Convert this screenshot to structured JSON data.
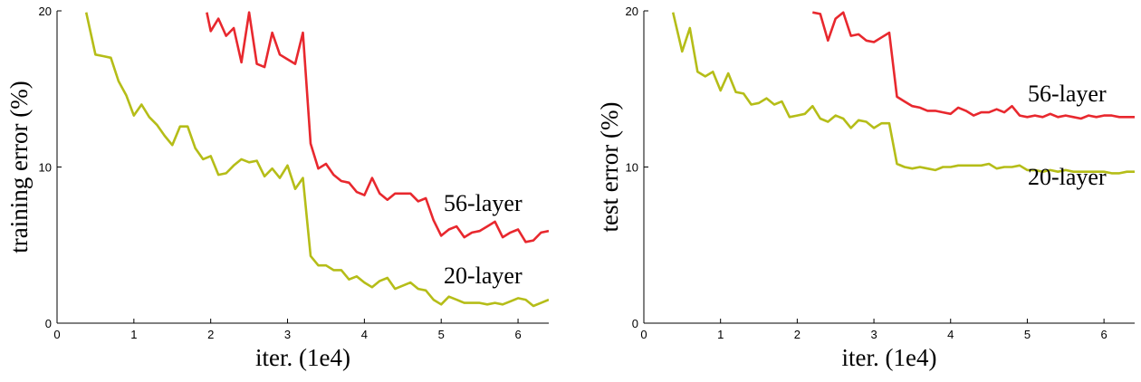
{
  "chart_data": [
    {
      "type": "line",
      "title": "",
      "xlabel": "iter. (1e4)",
      "ylabel": "training error (%)",
      "xlim": [
        0,
        6.4
      ],
      "ylim": [
        0,
        20
      ],
      "xticks": [
        "0",
        "1",
        "2",
        "3",
        "4",
        "5",
        "6"
      ],
      "yticks": [
        "0",
        "10",
        "20"
      ],
      "grid": false,
      "colors": {
        "56-layer": "#e8282e",
        "20-layer": "#b5bd18"
      },
      "series": [
        {
          "name": "56-layer",
          "x": [
            1.95,
            2.0,
            2.1,
            2.2,
            2.3,
            2.4,
            2.5,
            2.6,
            2.7,
            2.8,
            2.9,
            3.0,
            3.1,
            3.2,
            3.3,
            3.4,
            3.5,
            3.6,
            3.7,
            3.8,
            3.9,
            4.0,
            4.1,
            4.2,
            4.3,
            4.4,
            4.5,
            4.6,
            4.7,
            4.8,
            4.9,
            5.0,
            5.1,
            5.2,
            5.3,
            5.4,
            5.5,
            5.6,
            5.7,
            5.8,
            5.9,
            6.0,
            6.1,
            6.2,
            6.3,
            6.4
          ],
          "y": [
            19.9,
            18.7,
            19.5,
            18.4,
            18.9,
            16.7,
            19.9,
            16.6,
            16.4,
            18.6,
            17.2,
            16.9,
            16.6,
            18.6,
            11.5,
            9.9,
            10.2,
            9.5,
            9.1,
            9.0,
            8.4,
            8.2,
            9.3,
            8.3,
            7.9,
            8.3,
            8.3,
            8.3,
            7.8,
            8.0,
            6.6,
            5.6,
            6.0,
            6.2,
            5.5,
            5.8,
            5.9,
            6.2,
            6.5,
            5.5,
            5.8,
            6.0,
            5.2,
            5.3,
            5.8,
            5.9
          ]
        },
        {
          "name": "20-layer",
          "x": [
            0.38,
            0.5,
            0.6,
            0.7,
            0.8,
            0.9,
            1.0,
            1.1,
            1.2,
            1.3,
            1.4,
            1.5,
            1.6,
            1.7,
            1.8,
            1.9,
            2.0,
            2.1,
            2.2,
            2.3,
            2.4,
            2.5,
            2.6,
            2.7,
            2.8,
            2.9,
            3.0,
            3.1,
            3.2,
            3.3,
            3.4,
            3.5,
            3.6,
            3.7,
            3.8,
            3.9,
            4.0,
            4.1,
            4.2,
            4.3,
            4.4,
            4.5,
            4.6,
            4.7,
            4.8,
            4.9,
            5.0,
            5.1,
            5.2,
            5.3,
            5.4,
            5.5,
            5.6,
            5.7,
            5.8,
            5.9,
            6.0,
            6.1,
            6.2,
            6.3,
            6.4
          ],
          "y": [
            19.9,
            17.2,
            17.1,
            17.0,
            15.5,
            14.6,
            13.3,
            14.0,
            13.2,
            12.7,
            12.0,
            11.4,
            12.6,
            12.6,
            11.2,
            10.5,
            10.7,
            9.5,
            9.6,
            10.1,
            10.5,
            10.3,
            10.4,
            9.4,
            9.9,
            9.3,
            10.1,
            8.6,
            9.3,
            4.3,
            3.7,
            3.7,
            3.4,
            3.4,
            2.8,
            3.0,
            2.6,
            2.3,
            2.7,
            2.9,
            2.2,
            2.4,
            2.6,
            2.2,
            2.1,
            1.5,
            1.2,
            1.7,
            1.5,
            1.3,
            1.3,
            1.3,
            1.2,
            1.3,
            1.2,
            1.4,
            1.6,
            1.5,
            1.1,
            1.3,
            1.5
          ]
        }
      ]
    },
    {
      "type": "line",
      "title": "",
      "xlabel": "iter. (1e4)",
      "ylabel": "test error (%)",
      "xlim": [
        0,
        6.4
      ],
      "ylim": [
        0,
        20
      ],
      "xticks": [
        "0",
        "1",
        "2",
        "3",
        "4",
        "5",
        "6"
      ],
      "yticks": [
        "0",
        "10",
        "20"
      ],
      "grid": false,
      "colors": {
        "56-layer": "#e8282e",
        "20-layer": "#b5bd18"
      },
      "series": [
        {
          "name": "56-layer",
          "x": [
            2.2,
            2.3,
            2.4,
            2.5,
            2.6,
            2.7,
            2.8,
            2.9,
            3.0,
            3.1,
            3.2,
            3.3,
            3.4,
            3.5,
            3.6,
            3.7,
            3.8,
            3.9,
            4.0,
            4.1,
            4.2,
            4.3,
            4.4,
            4.5,
            4.6,
            4.7,
            4.8,
            4.9,
            5.0,
            5.1,
            5.2,
            5.3,
            5.4,
            5.5,
            5.6,
            5.7,
            5.8,
            5.9,
            6.0,
            6.1,
            6.2,
            6.3,
            6.4
          ],
          "y": [
            19.9,
            19.8,
            18.1,
            19.5,
            19.9,
            18.4,
            18.5,
            18.1,
            18.0,
            18.3,
            18.6,
            14.5,
            14.2,
            13.9,
            13.8,
            13.6,
            13.6,
            13.5,
            13.4,
            13.8,
            13.6,
            13.3,
            13.5,
            13.5,
            13.7,
            13.5,
            13.9,
            13.3,
            13.2,
            13.3,
            13.2,
            13.4,
            13.2,
            13.3,
            13.2,
            13.1,
            13.3,
            13.2,
            13.3,
            13.3,
            13.2,
            13.2,
            13.2
          ]
        },
        {
          "name": "20-layer",
          "x": [
            0.38,
            0.5,
            0.6,
            0.7,
            0.8,
            0.9,
            1.0,
            1.1,
            1.2,
            1.3,
            1.4,
            1.5,
            1.6,
            1.7,
            1.8,
            1.9,
            2.0,
            2.1,
            2.2,
            2.3,
            2.4,
            2.5,
            2.6,
            2.7,
            2.8,
            2.9,
            3.0,
            3.1,
            3.2,
            3.3,
            3.4,
            3.5,
            3.6,
            3.7,
            3.8,
            3.9,
            4.0,
            4.1,
            4.2,
            4.3,
            4.4,
            4.5,
            4.6,
            4.7,
            4.8,
            4.9,
            5.0,
            5.1,
            5.2,
            5.3,
            5.4,
            5.5,
            5.6,
            5.7,
            5.8,
            5.9,
            6.0,
            6.1,
            6.2,
            6.3,
            6.4
          ],
          "y": [
            19.9,
            17.4,
            18.9,
            16.1,
            15.8,
            16.1,
            14.9,
            16.0,
            14.8,
            14.7,
            14.0,
            14.1,
            14.4,
            14.0,
            14.2,
            13.2,
            13.3,
            13.4,
            13.9,
            13.1,
            12.9,
            13.3,
            13.1,
            12.5,
            13.0,
            12.9,
            12.5,
            12.8,
            12.8,
            10.2,
            10.0,
            9.9,
            10.0,
            9.9,
            9.8,
            10.0,
            10.0,
            10.1,
            10.1,
            10.1,
            10.1,
            10.2,
            9.9,
            10.0,
            10.0,
            10.1,
            9.8,
            9.8,
            9.7,
            9.8,
            9.7,
            9.8,
            9.7,
            9.7,
            9.7,
            9.7,
            9.7,
            9.6,
            9.6,
            9.7,
            9.7
          ]
        }
      ]
    }
  ]
}
